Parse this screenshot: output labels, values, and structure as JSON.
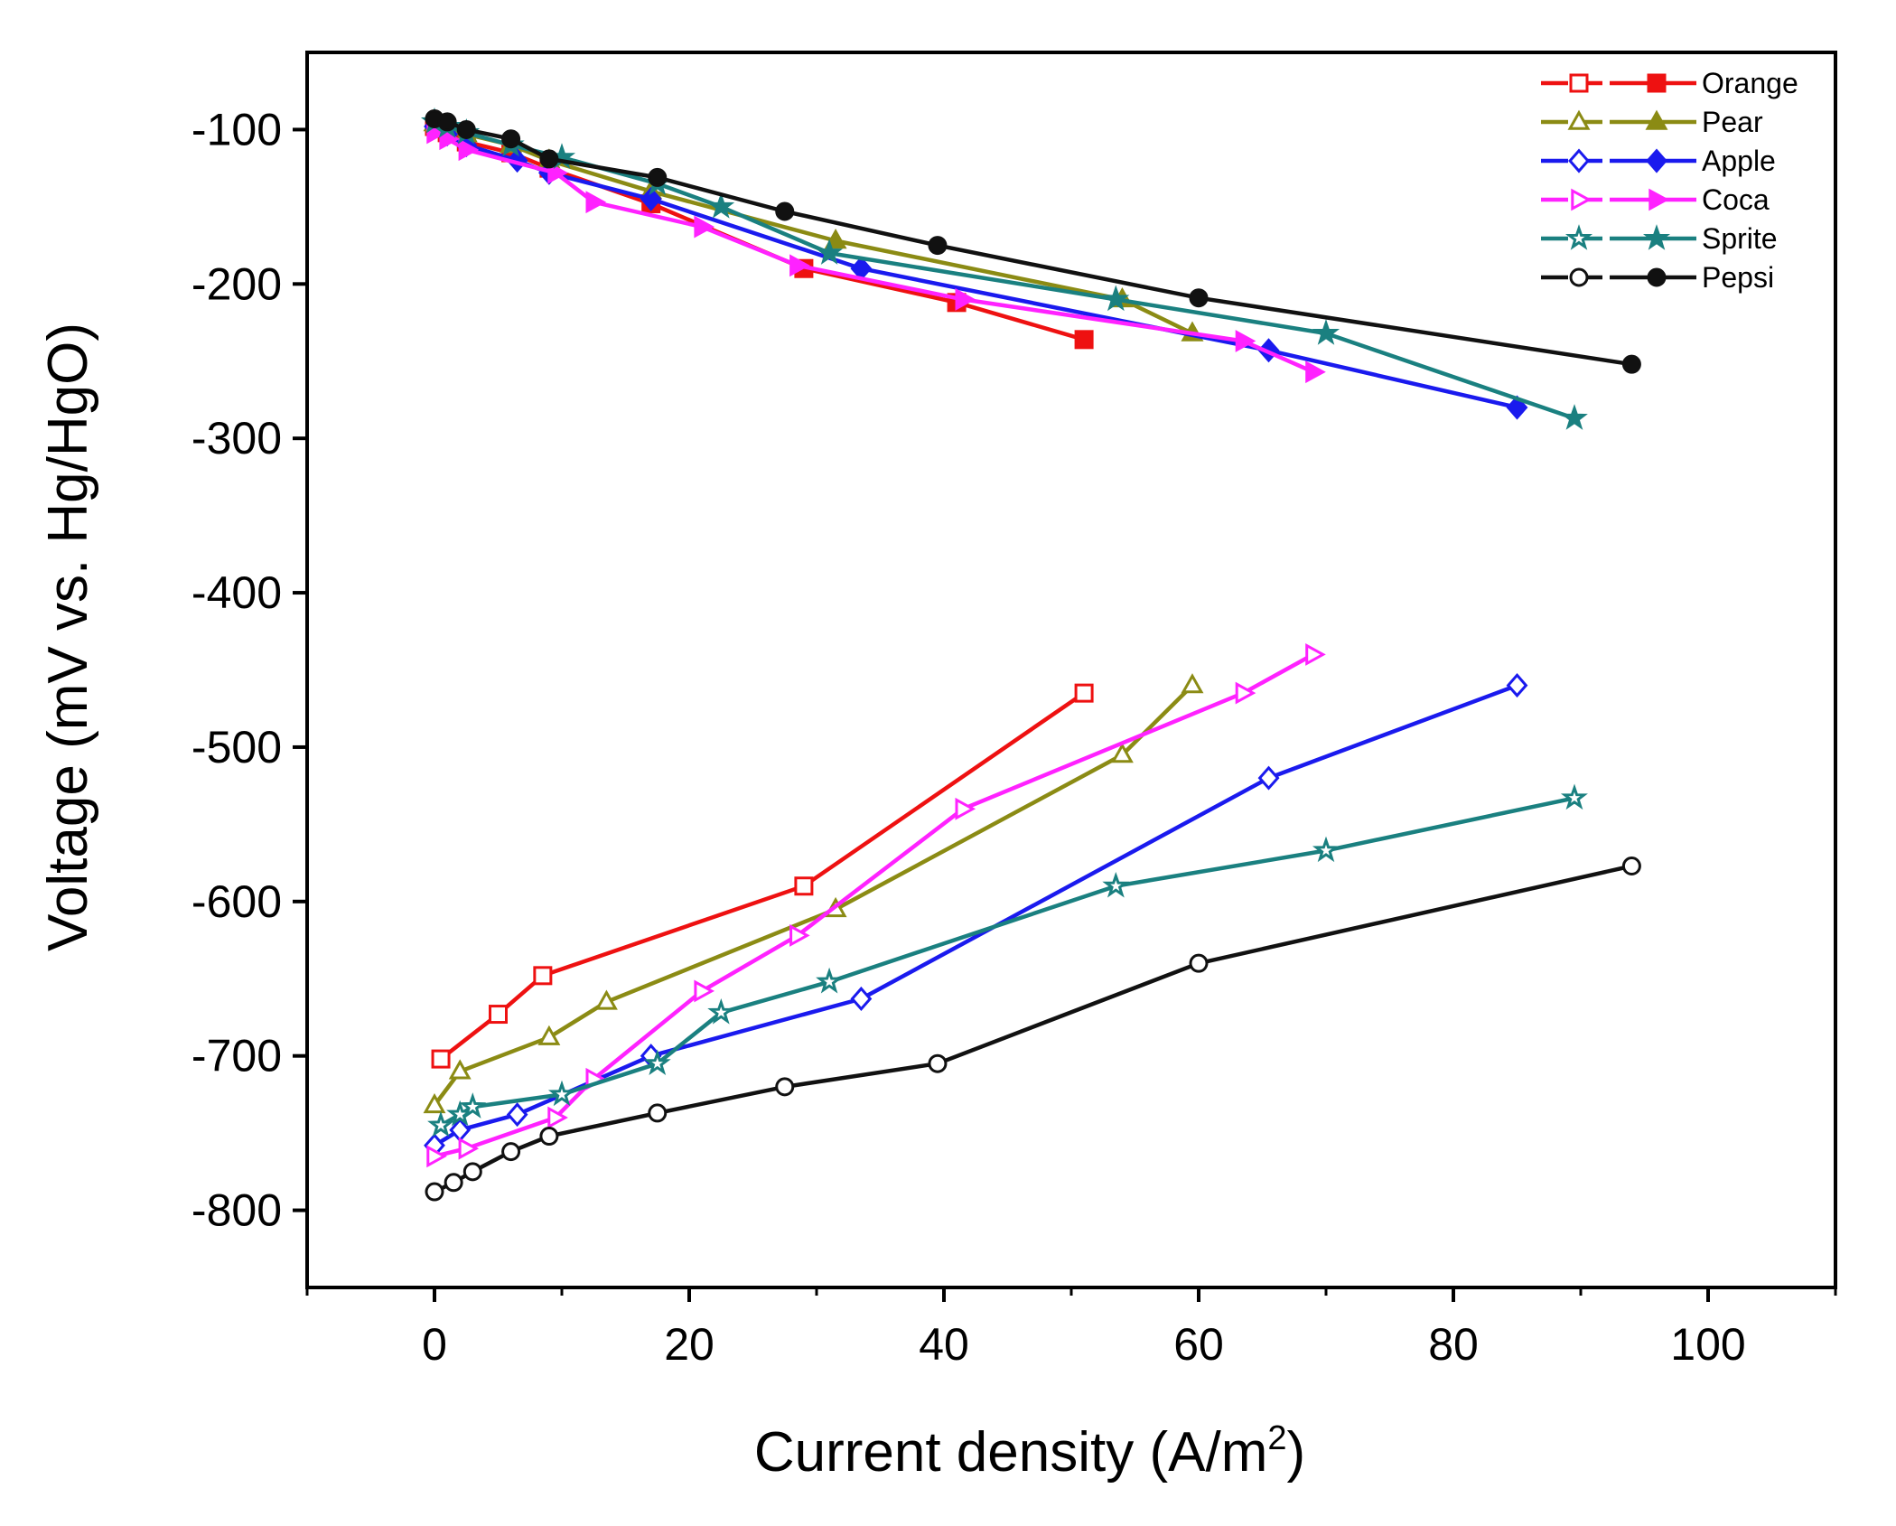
{
  "chart_data": {
    "type": "line",
    "title": "",
    "xlabel": "Current density (A/m",
    "xlabel_sup": "2",
    "xlabel_close": ")",
    "ylabel": "Voltage (mV vs. Hg/HgO)",
    "xlim": [
      -10,
      110
    ],
    "ylim": [
      -850,
      -50
    ],
    "x_ticks": [
      0,
      20,
      40,
      60,
      80,
      100
    ],
    "y_ticks": [
      -100,
      -200,
      -300,
      -400,
      -500,
      -600,
      -700,
      -800
    ],
    "grid": false,
    "legend_position": "top-right",
    "series": [
      {
        "name": "Orange",
        "color": "#ee1111",
        "marker": "square",
        "open": {
          "x": [
            0.5,
            5,
            8.5,
            29,
            51
          ],
          "y": [
            -702,
            -673,
            -648,
            -590,
            -465
          ]
        },
        "filled": {
          "x": [
            0,
            1,
            2.5,
            6,
            9,
            17,
            29,
            41,
            51
          ],
          "y": [
            -98,
            -102,
            -108,
            -115,
            -125,
            -148,
            -190,
            -212,
            -236
          ]
        }
      },
      {
        "name": "Pear",
        "color": "#8b8b14",
        "marker": "triangle",
        "open": {
          "x": [
            0,
            2,
            9,
            13.5,
            31.5,
            54,
            59.5
          ],
          "y": [
            -732,
            -710,
            -688,
            -665,
            -605,
            -505,
            -460
          ]
        },
        "filled": {
          "x": [
            0,
            1,
            2.5,
            6,
            9,
            17,
            31.5,
            54,
            59.5
          ],
          "y": [
            -96,
            -99,
            -103,
            -110,
            -120,
            -140,
            -172,
            -210,
            -232
          ]
        }
      },
      {
        "name": "Apple",
        "color": "#1a1aee",
        "marker": "diamond",
        "open": {
          "x": [
            0,
            2,
            6.5,
            17,
            33.5,
            65.5,
            85
          ],
          "y": [
            -758,
            -748,
            -738,
            -700,
            -663,
            -520,
            -460
          ]
        },
        "filled": {
          "x": [
            0,
            1,
            2.5,
            6.5,
            9,
            17,
            33.5,
            65.5,
            85
          ],
          "y": [
            -98,
            -103,
            -110,
            -120,
            -128,
            -145,
            -190,
            -243,
            -280
          ]
        }
      },
      {
        "name": "Coca",
        "color": "#ff22ff",
        "marker": "triangle-right",
        "open": {
          "x": [
            0,
            2.5,
            9.5,
            12.5,
            21,
            28.5,
            41.5,
            63.5,
            69
          ],
          "y": [
            -765,
            -760,
            -740,
            -715,
            -658,
            -622,
            -540,
            -465,
            -440
          ]
        },
        "filled": {
          "x": [
            0,
            1,
            2.5,
            9.5,
            12.5,
            21,
            28.5,
            41.5,
            63.5,
            69
          ],
          "y": [
            -102,
            -106,
            -113,
            -128,
            -147,
            -163,
            -188,
            -210,
            -237,
            -257
          ]
        }
      },
      {
        "name": "Sprite",
        "color": "#1a8080",
        "marker": "star",
        "open": {
          "x": [
            0.5,
            2,
            3,
            10,
            17.5,
            22.5,
            31,
            53.5,
            70,
            89.5
          ],
          "y": [
            -745,
            -738,
            -733,
            -725,
            -705,
            -672,
            -652,
            -590,
            -567,
            -533
          ]
        },
        "filled": {
          "x": [
            0,
            1,
            2.5,
            6,
            10,
            17.5,
            22.5,
            31,
            53.5,
            70,
            89.5
          ],
          "y": [
            -95,
            -98,
            -102,
            -110,
            -118,
            -135,
            -150,
            -180,
            -210,
            -232,
            -287
          ]
        }
      },
      {
        "name": "Pepsi",
        "color": "#111111",
        "marker": "circle",
        "open": {
          "x": [
            0,
            1.5,
            3,
            6,
            9,
            17.5,
            27.5,
            39.5,
            60,
            94
          ],
          "y": [
            -788,
            -782,
            -775,
            -762,
            -752,
            -737,
            -720,
            -705,
            -640,
            -577
          ]
        },
        "filled": {
          "x": [
            0,
            1,
            2.5,
            6,
            9,
            17.5,
            27.5,
            39.5,
            60,
            94
          ],
          "y": [
            -93,
            -95,
            -100,
            -106,
            -119,
            -131,
            -153,
            -175,
            -209,
            -252
          ]
        }
      }
    ]
  }
}
